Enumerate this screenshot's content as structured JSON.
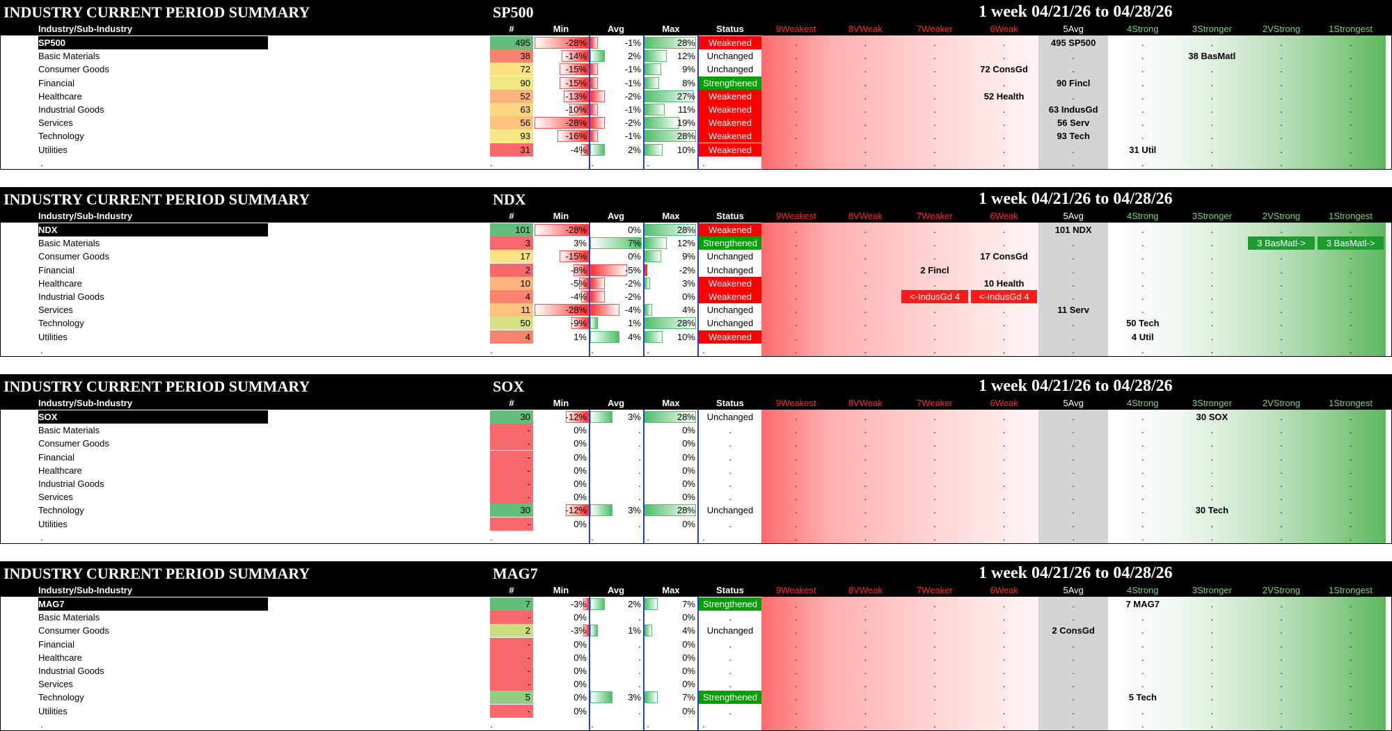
{
  "column_headers": {
    "label": "Industry/Sub-Industry",
    "count": "#",
    "min": "Min",
    "avg": "Avg",
    "max": "Max",
    "status": "Status",
    "ranks": [
      "9Weakest",
      "8VWeak",
      "7Weaker",
      "6Weak",
      "5Avg",
      "4Strong",
      "3Stronger",
      "2VStrong",
      "1Strongest"
    ]
  },
  "colors": {
    "weak_red": "#ff0000",
    "strong_green": "#00a000",
    "avg_grey": "#d4d4d4",
    "divider_blue": "#1f3ed6"
  },
  "panels": [
    {
      "title": "INDUSTRY CURRENT PERIOD SUMMARY",
      "index": "SP500",
      "period": "1 week 04/21/26 to 04/28/26",
      "rows": [
        {
          "label": "SP500",
          "count": "495",
          "min": "-28%",
          "min_v": -28,
          "avg": "-1%",
          "avg_v": -1,
          "max": "28%",
          "max_v": 28,
          "status": "Weakened",
          "count_bg": "#63be7b"
        },
        {
          "label": "Basic Materials",
          "count": "38",
          "min": "-14%",
          "min_v": -14,
          "avg": "2%",
          "avg_v": 2,
          "max": "12%",
          "max_v": 12,
          "status": "Unchanged",
          "count_bg": "#f8836e"
        },
        {
          "label": "Consumer Goods",
          "count": "72",
          "min": "-15%",
          "min_v": -15,
          "avg": "-1%",
          "avg_v": -1,
          "max": "9%",
          "max_v": 9,
          "status": "Unchanged",
          "count_bg": "#fde283"
        },
        {
          "label": "Financial",
          "count": "90",
          "min": "-15%",
          "min_v": -15,
          "avg": "-1%",
          "avg_v": -1,
          "max": "8%",
          "max_v": 8,
          "status": "Strengthened",
          "count_bg": "#eee683"
        },
        {
          "label": "Healthcare",
          "count": "52",
          "min": "-13%",
          "min_v": -13,
          "avg": "-2%",
          "avg_v": -2,
          "max": "27%",
          "max_v": 27,
          "status": "Weakened",
          "count_bg": "#fbb479"
        },
        {
          "label": "Industrial Goods",
          "count": "63",
          "min": "-10%",
          "min_v": -10,
          "avg": "-1%",
          "avg_v": -1,
          "max": "11%",
          "max_v": 11,
          "status": "Weakened",
          "count_bg": "#fdd680"
        },
        {
          "label": "Services",
          "count": "56",
          "min": "-28%",
          "min_v": -28,
          "avg": "-2%",
          "avg_v": -2,
          "max": "19%",
          "max_v": 19,
          "status": "Weakened",
          "count_bg": "#fcc37c"
        },
        {
          "label": "Technology",
          "count": "93",
          "min": "-16%",
          "min_v": -16,
          "avg": "-1%",
          "avg_v": -1,
          "max": "28%",
          "max_v": 28,
          "status": "Weakened",
          "count_bg": "#f4e883"
        },
        {
          "label": "Utilities",
          "count": "31",
          "min": "-4%",
          "min_v": -4,
          "avg": "2%",
          "avg_v": 2,
          "max": "10%",
          "max_v": 10,
          "status": "Weakened",
          "count_bg": "#f8696b"
        }
      ],
      "placements": [
        {
          "row": 0,
          "col": 4,
          "text": "495 SP500"
        },
        {
          "row": 1,
          "col": 6,
          "text": "38 BasMatl"
        },
        {
          "row": 2,
          "col": 3,
          "text": "72 ConsGd"
        },
        {
          "row": 3,
          "col": 4,
          "text": "90 Fincl"
        },
        {
          "row": 4,
          "col": 3,
          "text": "52 Health"
        },
        {
          "row": 5,
          "col": 4,
          "text": "63 IndusGd"
        },
        {
          "row": 6,
          "col": 4,
          "text": "56 Serv"
        },
        {
          "row": 7,
          "col": 4,
          "text": "93 Tech"
        },
        {
          "row": 8,
          "col": 5,
          "text": "31 Util"
        }
      ],
      "boxes": []
    },
    {
      "title": "INDUSTRY CURRENT PERIOD SUMMARY",
      "index": "NDX",
      "period": "1 week 04/21/26 to 04/28/26",
      "rows": [
        {
          "label": "NDX",
          "count": "101",
          "min": "-28%",
          "min_v": -28,
          "avg": "0%",
          "avg_v": 0,
          "max": "28%",
          "max_v": 28,
          "status": "Weakened",
          "count_bg": "#63be7b"
        },
        {
          "label": "Basic Materials",
          "count": "3",
          "min": "3%",
          "min_v": 3,
          "avg": "7%",
          "avg_v": 7,
          "max": "12%",
          "max_v": 12,
          "status": "Strengthened",
          "count_bg": "#f8696b"
        },
        {
          "label": "Consumer Goods",
          "count": "17",
          "min": "-15%",
          "min_v": -15,
          "avg": "0%",
          "avg_v": 0,
          "max": "9%",
          "max_v": 9,
          "status": "Unchanged",
          "count_bg": "#fde283"
        },
        {
          "label": "Financial",
          "count": "2",
          "min": "-8%",
          "min_v": -8,
          "avg": "-5%",
          "avg_v": -5,
          "max": "-2%",
          "max_v": -2,
          "status": "Unchanged",
          "count_bg": "#f8696b"
        },
        {
          "label": "Healthcare",
          "count": "10",
          "min": "-5%",
          "min_v": -5,
          "avg": "-2%",
          "avg_v": -2,
          "max": "3%",
          "max_v": 3,
          "status": "Weakened",
          "count_bg": "#fbb479"
        },
        {
          "label": "Industrial Goods",
          "count": "4",
          "min": "-4%",
          "min_v": -4,
          "avg": "-2%",
          "avg_v": -2,
          "max": "0%",
          "max_v": 0,
          "status": "Weakened",
          "count_bg": "#f8836e"
        },
        {
          "label": "Services",
          "count": "11",
          "min": "-28%",
          "min_v": -28,
          "avg": "-4%",
          "avg_v": -4,
          "max": "4%",
          "max_v": 4,
          "status": "Unchanged",
          "count_bg": "#fcc37c"
        },
        {
          "label": "Technology",
          "count": "50",
          "min": "-9%",
          "min_v": -9,
          "avg": "1%",
          "avg_v": 1,
          "max": "28%",
          "max_v": 28,
          "status": "Unchanged",
          "count_bg": "#d6df81"
        },
        {
          "label": "Utilities",
          "count": "4",
          "min": "1%",
          "min_v": 1,
          "avg": "4%",
          "avg_v": 4,
          "max": "10%",
          "max_v": 10,
          "status": "Weakened",
          "count_bg": "#f8836e"
        }
      ],
      "placements": [
        {
          "row": 0,
          "col": 4,
          "text": "101 NDX"
        },
        {
          "row": 2,
          "col": 3,
          "text": "17 ConsGd"
        },
        {
          "row": 3,
          "col": 2,
          "text": "2 Fincl"
        },
        {
          "row": 4,
          "col": 3,
          "text": "10 Health"
        },
        {
          "row": 6,
          "col": 4,
          "text": "11 Serv"
        },
        {
          "row": 7,
          "col": 5,
          "text": "50 Tech"
        },
        {
          "row": 8,
          "col": 5,
          "text": "4 Util"
        }
      ],
      "boxes": [
        {
          "row": 1,
          "col": 7,
          "text": "3 BasMatl->",
          "color": "#1e9b2f"
        },
        {
          "row": 1,
          "col": 8,
          "text": "3 BasMatl->",
          "color": "#1e9b2f"
        },
        {
          "row": 5,
          "col": 2,
          "text": "<-IndusGd 4",
          "color": "#ff1a1a"
        },
        {
          "row": 5,
          "col": 3,
          "text": "<-IndusGd 4",
          "color": "#ff1a1a"
        }
      ]
    },
    {
      "title": "INDUSTRY CURRENT PERIOD SUMMARY",
      "index": "SOX",
      "period": "1 week 04/21/26 to 04/28/26",
      "rows": [
        {
          "label": "SOX",
          "count": "30",
          "min": "-12%",
          "min_v": -12,
          "avg": "3%",
          "avg_v": 3,
          "max": "28%",
          "max_v": 28,
          "status": "Unchanged",
          "count_bg": "#63be7b"
        },
        {
          "label": "Basic Materials",
          "count": "-",
          "min": "0%",
          "min_v": 0,
          "avg": ".",
          "avg_v": 0,
          "max": "0%",
          "max_v": 0,
          "status": ".",
          "count_bg": "#f8696b"
        },
        {
          "label": "Consumer Goods",
          "count": "-",
          "min": "0%",
          "min_v": 0,
          "avg": ".",
          "avg_v": 0,
          "max": "0%",
          "max_v": 0,
          "status": ".",
          "count_bg": "#f8696b"
        },
        {
          "label": "Financial",
          "count": "-",
          "min": "0%",
          "min_v": 0,
          "avg": ".",
          "avg_v": 0,
          "max": "0%",
          "max_v": 0,
          "status": ".",
          "count_bg": "#f8696b"
        },
        {
          "label": "Healthcare",
          "count": "-",
          "min": "0%",
          "min_v": 0,
          "avg": ".",
          "avg_v": 0,
          "max": "0%",
          "max_v": 0,
          "status": ".",
          "count_bg": "#f8696b"
        },
        {
          "label": "Industrial Goods",
          "count": "-",
          "min": "0%",
          "min_v": 0,
          "avg": ".",
          "avg_v": 0,
          "max": "0%",
          "max_v": 0,
          "status": ".",
          "count_bg": "#f8696b"
        },
        {
          "label": "Services",
          "count": "-",
          "min": "0%",
          "min_v": 0,
          "avg": ".",
          "avg_v": 0,
          "max": "0%",
          "max_v": 0,
          "status": ".",
          "count_bg": "#f8696b"
        },
        {
          "label": "Technology",
          "count": "30",
          "min": "-12%",
          "min_v": -12,
          "avg": "3%",
          "avg_v": 3,
          "max": "28%",
          "max_v": 28,
          "status": "Unchanged",
          "count_bg": "#63be7b"
        },
        {
          "label": "Utilities",
          "count": "-",
          "min": "0%",
          "min_v": 0,
          "avg": ".",
          "avg_v": 0,
          "max": "0%",
          "max_v": 0,
          "status": ".",
          "count_bg": "#f8696b"
        }
      ],
      "placements": [
        {
          "row": 0,
          "col": 6,
          "text": "30 SOX"
        },
        {
          "row": 7,
          "col": 6,
          "text": "30 Tech"
        }
      ],
      "boxes": []
    },
    {
      "title": "INDUSTRY CURRENT PERIOD SUMMARY",
      "index": "MAG7",
      "period": "1 week 04/21/26 to 04/28/26",
      "rows": [
        {
          "label": "MAG7",
          "count": "7",
          "min": "-3%",
          "min_v": -3,
          "avg": "2%",
          "avg_v": 2,
          "max": "7%",
          "max_v": 7,
          "status": "Strengthened",
          "count_bg": "#63be7b"
        },
        {
          "label": "Basic Materials",
          "count": "-",
          "min": "0%",
          "min_v": 0,
          "avg": ".",
          "avg_v": 0,
          "max": "0%",
          "max_v": 0,
          "status": ".",
          "count_bg": "#f8696b"
        },
        {
          "label": "Consumer Goods",
          "count": "2",
          "min": "-3%",
          "min_v": -3,
          "avg": "1%",
          "avg_v": 1,
          "max": "4%",
          "max_v": 4,
          "status": "Unchanged",
          "count_bg": "#cddc81"
        },
        {
          "label": "Financial",
          "count": "-",
          "min": "0%",
          "min_v": 0,
          "avg": ".",
          "avg_v": 0,
          "max": "0%",
          "max_v": 0,
          "status": ".",
          "count_bg": "#f8696b"
        },
        {
          "label": "Healthcare",
          "count": "-",
          "min": "0%",
          "min_v": 0,
          "avg": ".",
          "avg_v": 0,
          "max": "0%",
          "max_v": 0,
          "status": ".",
          "count_bg": "#f8696b"
        },
        {
          "label": "Industrial Goods",
          "count": "-",
          "min": "0%",
          "min_v": 0,
          "avg": ".",
          "avg_v": 0,
          "max": "0%",
          "max_v": 0,
          "status": ".",
          "count_bg": "#f8696b"
        },
        {
          "label": "Services",
          "count": "-",
          "min": "0%",
          "min_v": 0,
          "avg": ".",
          "avg_v": 0,
          "max": "0%",
          "max_v": 0,
          "status": ".",
          "count_bg": "#f8696b"
        },
        {
          "label": "Technology",
          "count": "5",
          "min": "0%",
          "min_v": 0,
          "avg": "3%",
          "avg_v": 3,
          "max": "7%",
          "max_v": 7,
          "status": "Strengthened",
          "count_bg": "#92cc7e"
        },
        {
          "label": "Utilities",
          "count": "-",
          "min": "0%",
          "min_v": 0,
          "avg": ".",
          "avg_v": 0,
          "max": "0%",
          "max_v": 0,
          "status": ".",
          "count_bg": "#f8696b"
        }
      ],
      "placements": [
        {
          "row": 0,
          "col": 5,
          "text": "7 MAG7"
        },
        {
          "row": 2,
          "col": 4,
          "text": "2 ConsGd"
        },
        {
          "row": 7,
          "col": 5,
          "text": "5 Tech"
        }
      ],
      "boxes": []
    }
  ]
}
